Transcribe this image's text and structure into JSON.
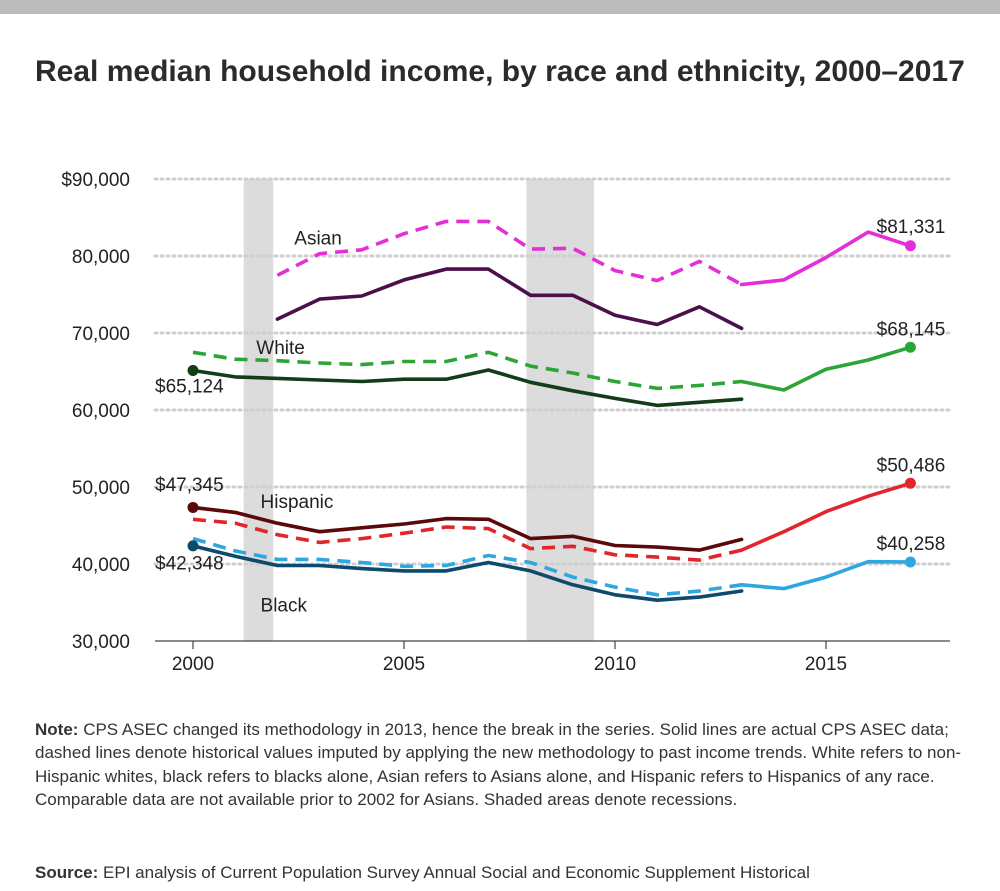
{
  "title": "Real median household income, by race and ethnicity, 2000–2017",
  "note": {
    "label": "Note:",
    "text": "CPS ASEC changed its methodology in 2013, hence the break in the series. Solid lines are actual CPS ASEC data; dashed lines denote historical values imputed by applying the new methodology to past income trends. White refers to non-Hispanic whites, black refers to blacks alone, Asian refers to Asians alone, and Hispanic refers to Hispanics of any race. Comparable data are not available prior to 2002 for Asians. Shaded areas denote recessions."
  },
  "source": {
    "label": "Source:",
    "text": "EPI analysis of Current Population Survey Annual Social and Economic Supplement Historical"
  },
  "chart_data": {
    "type": "line",
    "ylim": [
      30000,
      90000
    ],
    "xlim": [
      1999.2,
      2018.2
    ],
    "y_ticks": [
      30000,
      40000,
      50000,
      60000,
      70000,
      80000,
      90000
    ],
    "y_tick_labels": [
      "30,000",
      "40,000",
      "50,000",
      "60,000",
      "70,000",
      "80,000",
      "$90,000"
    ],
    "x_ticks": [
      2000,
      2005,
      2010,
      2015
    ],
    "x_tick_labels": [
      "2000",
      "2005",
      "2010",
      "2015"
    ],
    "grid": "horizontal dotted",
    "recessions": [
      [
        2001.2,
        2001.9
      ],
      [
        2007.9,
        2009.5
      ]
    ],
    "series": [
      {
        "name": "Asian",
        "color": "#e42fd9",
        "style": "dashed",
        "x": [
          2002,
          2003,
          2004,
          2005,
          2006,
          2007,
          2008,
          2009,
          2010,
          2011,
          2012,
          2013
        ],
        "y": [
          77500,
          80300,
          80800,
          82900,
          84500,
          84500,
          80900,
          81000,
          78100,
          76800,
          79300,
          76300
        ]
      },
      {
        "color": "#e42fd9",
        "style": "solid",
        "x": [
          2013,
          2014,
          2015,
          2016,
          2017
        ],
        "y": [
          76300,
          76900,
          79800,
          83100,
          81331
        ]
      },
      {
        "color": "#4b0f4b",
        "style": "solid",
        "x": [
          2002,
          2003,
          2004,
          2005,
          2006,
          2007,
          2008,
          2009,
          2010,
          2011,
          2012,
          2013
        ],
        "y": [
          71800,
          74400,
          74800,
          76900,
          78300,
          78300,
          74900,
          74900,
          72300,
          71100,
          73400,
          70600
        ]
      },
      {
        "name": "White",
        "color": "#2ca536",
        "style": "dashed",
        "x": [
          2000,
          2001,
          2002,
          2003,
          2004,
          2005,
          2006,
          2007,
          2008,
          2009,
          2010,
          2011,
          2012,
          2013
        ],
        "y": [
          67500,
          66600,
          66400,
          66100,
          65900,
          66300,
          66300,
          67500,
          65700,
          64800,
          63700,
          62800,
          63200,
          63700
        ]
      },
      {
        "color": "#2ca536",
        "style": "solid",
        "x": [
          2013,
          2014,
          2015,
          2016,
          2017
        ],
        "y": [
          63700,
          62600,
          65300,
          66500,
          68145
        ]
      },
      {
        "color": "#123d17",
        "style": "solid",
        "x": [
          2000,
          2001,
          2002,
          2003,
          2004,
          2005,
          2006,
          2007,
          2008,
          2009,
          2010,
          2011,
          2012,
          2013
        ],
        "y": [
          65124,
          64300,
          64100,
          63900,
          63700,
          64000,
          64000,
          65200,
          63600,
          62500,
          61500,
          60600,
          61000,
          61400
        ]
      },
      {
        "name": "Hispanic",
        "color": "#e0262b",
        "style": "dashed",
        "x": [
          2000,
          2001,
          2002,
          2003,
          2004,
          2005,
          2006,
          2007,
          2008,
          2009,
          2010,
          2011,
          2012,
          2013
        ],
        "y": [
          45800,
          45300,
          43800,
          42800,
          43300,
          44000,
          44800,
          44600,
          42000,
          42300,
          41200,
          40900,
          40500,
          41800
        ]
      },
      {
        "color": "#e0262b",
        "style": "solid",
        "x": [
          2013,
          2014,
          2015,
          2016,
          2017
        ],
        "y": [
          41800,
          44200,
          46800,
          48800,
          50486
        ]
      },
      {
        "color": "#5a0a0a",
        "style": "solid",
        "x": [
          2000,
          2001,
          2002,
          2003,
          2004,
          2005,
          2006,
          2007,
          2008,
          2009,
          2010,
          2011,
          2012,
          2013
        ],
        "y": [
          47345,
          46700,
          45300,
          44200,
          44700,
          45200,
          45900,
          45800,
          43300,
          43600,
          42400,
          42200,
          41800,
          43200
        ]
      },
      {
        "name": "Black",
        "color": "#2ea7e0",
        "style": "dashed",
        "x": [
          2000,
          2001,
          2002,
          2003,
          2004,
          2005,
          2006,
          2007,
          2008,
          2009,
          2010,
          2011,
          2012,
          2013
        ],
        "y": [
          43300,
          41700,
          40600,
          40600,
          40200,
          39700,
          39800,
          41100,
          40200,
          38300,
          37000,
          36000,
          36500,
          37300
        ]
      },
      {
        "color": "#2ea7e0",
        "style": "solid",
        "x": [
          2013,
          2014,
          2015,
          2016,
          2017
        ],
        "y": [
          37300,
          36800,
          38300,
          40300,
          40258
        ]
      },
      {
        "color": "#0d4a6b",
        "style": "solid",
        "x": [
          2000,
          2001,
          2002,
          2003,
          2004,
          2005,
          2006,
          2007,
          2008,
          2009,
          2010,
          2011,
          2012,
          2013
        ],
        "y": [
          42348,
          41000,
          39800,
          39800,
          39400,
          39100,
          39100,
          40200,
          39100,
          37300,
          36000,
          35300,
          35700,
          36500
        ]
      }
    ],
    "endpoints": [
      {
        "x": 2000,
        "y": 65124,
        "color": "#123d17"
      },
      {
        "x": 2000,
        "y": 47345,
        "color": "#5a0a0a"
      },
      {
        "x": 2000,
        "y": 42348,
        "color": "#0d4a6b"
      },
      {
        "x": 2017,
        "y": 81331,
        "color": "#e42fd9"
      },
      {
        "x": 2017,
        "y": 68145,
        "color": "#2ca536"
      },
      {
        "x": 2017,
        "y": 50486,
        "color": "#e0262b"
      },
      {
        "x": 2017,
        "y": 40258,
        "color": "#2ea7e0"
      }
    ],
    "annotations": [
      {
        "text": "Asian",
        "x": 2002.4,
        "y": 81500,
        "anchor": "start"
      },
      {
        "text": "White",
        "x": 2001.5,
        "y": 67300,
        "anchor": "start"
      },
      {
        "text": "Hispanic",
        "x": 2001.6,
        "y": 47300,
        "anchor": "start"
      },
      {
        "text": "Black",
        "x": 2001.6,
        "y": 33800,
        "anchor": "start"
      },
      {
        "text": "$65,124",
        "x": 1999.1,
        "y": 62300,
        "anchor": "start"
      },
      {
        "text": "$47,345",
        "x": 1999.1,
        "y": 49500,
        "anchor": "start"
      },
      {
        "text": "$42,348",
        "x": 1999.1,
        "y": 39300,
        "anchor": "start"
      },
      {
        "text": "$81,331",
        "x": 2016.2,
        "y": 83000,
        "anchor": "start"
      },
      {
        "text": "$68,145",
        "x": 2016.2,
        "y": 69700,
        "anchor": "start"
      },
      {
        "text": "$50,486",
        "x": 2016.2,
        "y": 52000,
        "anchor": "start"
      },
      {
        "text": "$40,258",
        "x": 2016.2,
        "y": 41800,
        "anchor": "start"
      }
    ]
  }
}
